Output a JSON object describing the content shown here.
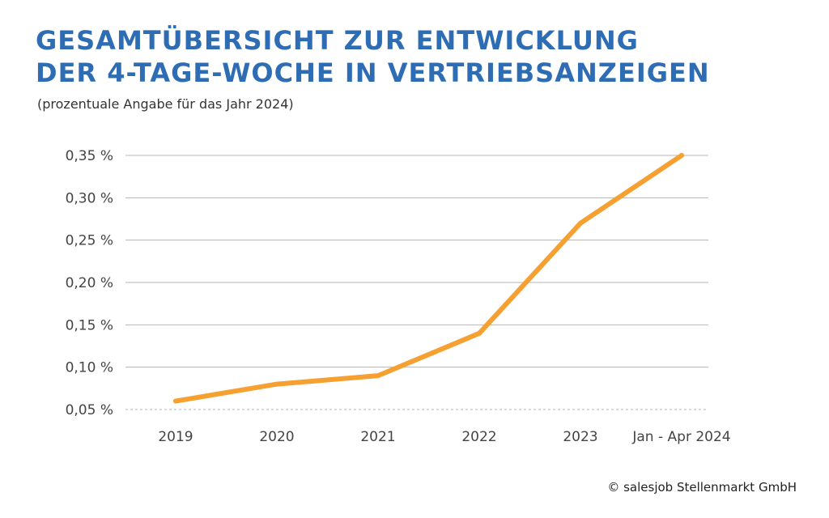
{
  "header": {
    "title_line1": "GESAMTÜBERSICHT ZUR ENTWICKLUNG",
    "title_line2": "DER 4-TAGE-WOCHE IN VERTRIEBSANZEIGEN",
    "subtitle": "(prozentuale Angabe für das Jahr 2024)"
  },
  "footer": {
    "copyright": "© salesjob Stellenmarkt GmbH"
  },
  "colors": {
    "title": "#2e6db4",
    "line": "#f5a030",
    "grid": "#b5b5b5"
  },
  "chart_data": {
    "type": "line",
    "title": "GESAMTÜBERSICHT ZUR ENTWICKLUNG DER 4-TAGE-WOCHE IN VERTRIEBSANZEIGEN",
    "subtitle": "(prozentuale Angabe für das Jahr 2024)",
    "xlabel": "",
    "ylabel": "",
    "categories": [
      "2019",
      "2020",
      "2021",
      "2022",
      "2023",
      "Jan - Apr 2024"
    ],
    "series": [
      {
        "name": "4-Tage-Woche",
        "values": [
          0.06,
          0.08,
          0.09,
          0.14,
          0.27,
          0.35
        ]
      }
    ],
    "ylim": [
      0.05,
      0.35
    ],
    "yticks": [
      0.05,
      0.1,
      0.15,
      0.2,
      0.25,
      0.3,
      0.35
    ],
    "ytick_labels": [
      "0,05 %",
      "0,10 %",
      "0,15 %",
      "0,20 %",
      "0,25 %",
      "0,30 %",
      "0,35 %"
    ],
    "grid": true,
    "legend": "none"
  }
}
